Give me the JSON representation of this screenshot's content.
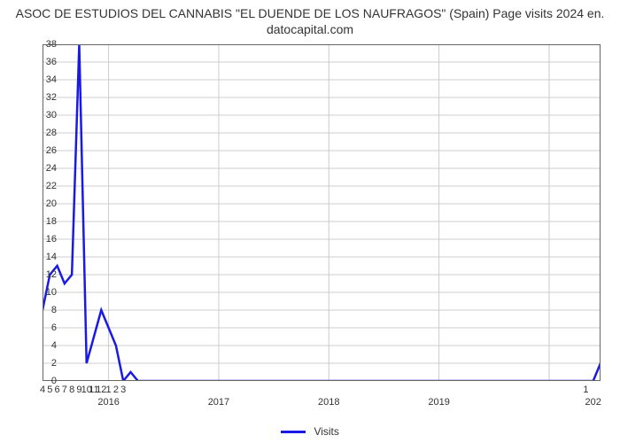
{
  "chart": {
    "type": "line",
    "title_line1": "ASOC DE ESTUDIOS DEL CANNABIS \"EL DUENDE DE LOS NAUFRAGOS\" (Spain) Page visits 2024 en.",
    "title_line2": "datocapital.com",
    "title_fontsize": 14,
    "title_color": "#333333",
    "series": {
      "name": "Visits",
      "color": "#1a1ae6",
      "line_width": 2.5,
      "x": [
        0,
        1,
        2,
        3,
        4,
        5,
        6,
        7,
        8,
        9,
        10,
        11,
        12,
        13,
        14,
        15,
        75,
        76
      ],
      "y": [
        8,
        12,
        13,
        11,
        12,
        38,
        2,
        5,
        8,
        6,
        4,
        0,
        1,
        0,
        0,
        0,
        0,
        2
      ]
    },
    "x_axis": {
      "min": 0,
      "max": 76,
      "minor_ticks": {
        "positions": [
          0,
          1,
          2,
          3,
          4,
          5,
          6,
          7,
          8,
          9,
          10,
          11
        ],
        "labels": [
          "4",
          "5",
          "6",
          "7",
          "8",
          "9",
          "10",
          "11",
          "12",
          "1",
          "2",
          "3"
        ]
      },
      "major_ticks": {
        "positions": [
          9,
          24,
          39,
          54,
          69,
          75
        ],
        "labels": [
          "2016",
          "2017",
          "2018",
          "2019",
          "",
          "202"
        ]
      },
      "extra_tick": {
        "position": 74,
        "label": "1"
      },
      "grid_positions": [
        9,
        24,
        39,
        54,
        69
      ],
      "grid_color": "#cccccc"
    },
    "y_axis": {
      "min": 0,
      "max": 38,
      "tick_step": 2,
      "ticks": [
        0,
        2,
        4,
        6,
        8,
        10,
        12,
        14,
        16,
        18,
        20,
        22,
        24,
        26,
        28,
        30,
        32,
        34,
        36,
        38
      ],
      "grid_color": "#cccccc"
    },
    "background_color": "#ffffff",
    "plot_border_color": "#666666",
    "legend": {
      "label": "Visits",
      "swatch_color": "#1a1ae6",
      "position": "bottom-center"
    }
  }
}
